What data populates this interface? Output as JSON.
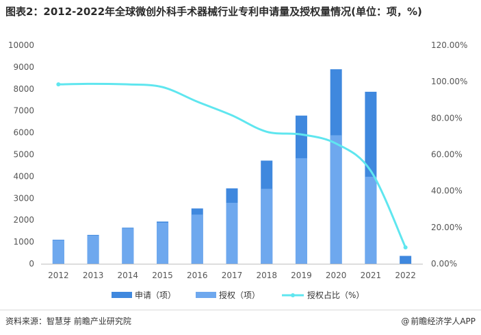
{
  "title": "图表2：2012-2022年全球微创外科手术器械行业专利申请量及授权量情况(单位：项，%)",
  "footer": {
    "source": "资料来源：智慧芽 前瞻产业研究院",
    "brand": "前瞻经济学人APP",
    "brand_prefix": "@"
  },
  "chart_data": {
    "type": "bar",
    "categories": [
      "2012",
      "2013",
      "2014",
      "2015",
      "2016",
      "2017",
      "2018",
      "2019",
      "2020",
      "2021",
      "2022"
    ],
    "series": [
      {
        "name": "申请（项）",
        "kind": "bar",
        "color": "#3f88de",
        "values": [
          1100,
          1320,
          1650,
          1930,
          2530,
          3450,
          4720,
          6780,
          8900,
          7870,
          360
        ]
      },
      {
        "name": "授权（项）",
        "kind": "bar",
        "color": "#6ea8ee",
        "values": [
          1080,
          1290,
          1620,
          1880,
          2250,
          2790,
          3430,
          4830,
          5880,
          3980,
          0
        ]
      },
      {
        "name": "授权占比（%）",
        "kind": "line",
        "axis": "right",
        "color": "#5fe6ef",
        "values": [
          98.5,
          98.8,
          98.5,
          97.0,
          89.0,
          81.5,
          72.5,
          71.0,
          66.0,
          51.0,
          9.0
        ]
      }
    ],
    "y_left": {
      "min": 0,
      "max": 10000,
      "step": 1000,
      "ticks": [
        "0",
        "1000",
        "2000",
        "3000",
        "4000",
        "5000",
        "6000",
        "7000",
        "8000",
        "9000",
        "10000"
      ]
    },
    "y_right": {
      "min": 0,
      "max": 120,
      "step": 20,
      "ticks": [
        "0.00%",
        "20.00%",
        "40.00%",
        "60.00%",
        "80.00%",
        "100.00%",
        "120.00%"
      ]
    },
    "legend_position": "bottom",
    "grid": false
  }
}
